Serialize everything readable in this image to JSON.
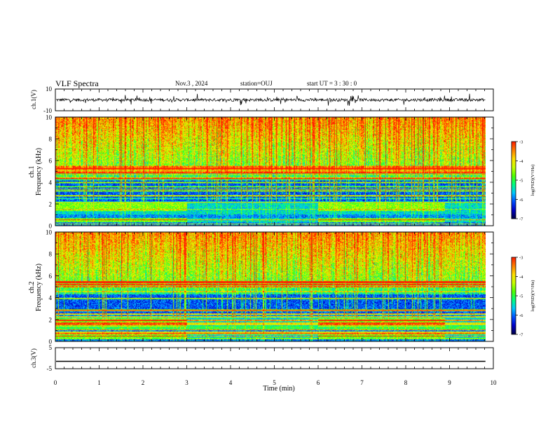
{
  "header": {
    "title": "VLF Spectra",
    "date": "Nov.3 , 2024",
    "station": "station=OUJ",
    "start": "start UT = 3 : 30 : 0"
  },
  "chart_data": [
    {
      "type": "line",
      "panel": "ch1-waveform",
      "ylabel": "ch.1(V)",
      "ylim": [
        -10,
        10
      ],
      "yticks": [
        "10",
        "-10"
      ],
      "xlim": [
        0,
        10
      ],
      "description_values": {
        "baseline": 0,
        "typical_amplitude": 3
      }
    },
    {
      "type": "heatmap",
      "panel": "ch1-spectrogram",
      "ylabel": "ch.1\nFrequency (kHz)",
      "ylim": [
        0,
        10
      ],
      "yticks": [
        "0",
        "2",
        "4",
        "6",
        "8",
        "10"
      ],
      "xlim": [
        0,
        10
      ],
      "data_end_min": 9.82,
      "colorbar": {
        "label": "log(PSD)(V²/Hz)",
        "range": [
          -7,
          -3
        ],
        "ticks": [
          "-3",
          "-4",
          "-5",
          "-6",
          "-7"
        ]
      },
      "segment_breaks_min": [
        3.0,
        6.0,
        8.9
      ]
    },
    {
      "type": "heatmap",
      "panel": "ch2-spectrogram",
      "ylabel": "ch.2\nFrequency (kHz)",
      "ylim": [
        0,
        10
      ],
      "yticks": [
        "0",
        "2",
        "4",
        "6",
        "8",
        "10"
      ],
      "xlim": [
        0,
        10
      ],
      "data_end_min": 9.82,
      "colorbar": {
        "label": "log(PSD)(V²/Hz)",
        "range": [
          -7,
          -3
        ],
        "ticks": [
          "-3",
          "-4",
          "-5",
          "-6",
          "-7"
        ]
      },
      "segment_breaks_min": [
        3.0,
        6.0,
        8.9
      ]
    },
    {
      "type": "line",
      "panel": "ch3-waveform",
      "ylabel": "ch.3(V)",
      "ylim": [
        -5,
        5
      ],
      "yticks": [
        "5",
        "-5"
      ],
      "xlim": [
        0,
        10
      ],
      "xlabel": "Time (min)",
      "xticks": [
        "0",
        "1",
        "2",
        "3",
        "4",
        "5",
        "6",
        "7",
        "8",
        "9",
        "10"
      ],
      "values_constant": -1.5
    }
  ],
  "colors": {
    "colormap": [
      "#00004a",
      "#0000c8",
      "#0050ff",
      "#00c8ff",
      "#00ff80",
      "#50ff00",
      "#c8ff00",
      "#ffe000",
      "#ff8000",
      "#ff1e00"
    ],
    "axis": "#000000"
  }
}
